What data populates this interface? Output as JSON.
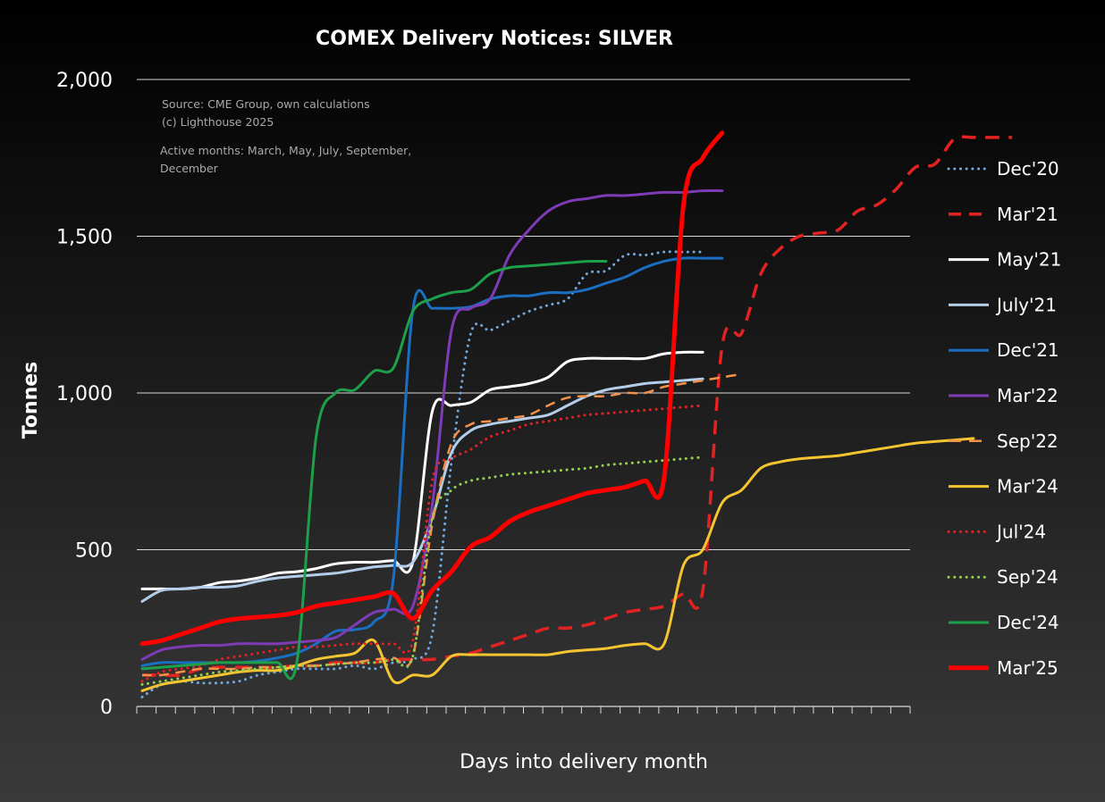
{
  "chart_data": {
    "type": "line",
    "title": "COMEX Delivery Notices: SILVER",
    "xlabel": "Days into delivery month",
    "ylabel": "Tonnes",
    "ylim": [
      0,
      2000
    ],
    "yticks": [
      0,
      500,
      1000,
      1500,
      2000
    ],
    "ytick_labels": [
      "0",
      "500",
      "1,000",
      "1,500",
      "2,000"
    ],
    "x_count": 40,
    "grid": true,
    "legend_position": "right",
    "notes": [
      "Source: CME Group, own calculations",
      "(c) Lighthouse 2025",
      "Active months: March, May, July, September,",
      "December"
    ],
    "series": [
      {
        "name": "Dec'20",
        "color": "#6fa8dc",
        "dash": "dot",
        "width": 3,
        "values": [
          30,
          70,
          80,
          75,
          75,
          80,
          100,
          110,
          120,
          120,
          120,
          130,
          120,
          140,
          150,
          230,
          780,
          1190,
          1200,
          1230,
          1260,
          1280,
          1300,
          1380,
          1390,
          1440,
          1440,
          1450,
          1450,
          1450
        ]
      },
      {
        "name": "Mar'21",
        "color": "#e32222",
        "dash": "dash",
        "width": 3.5,
        "values": [
          100,
          100,
          100,
          120,
          125,
          125,
          125,
          125,
          130,
          130,
          140,
          140,
          140,
          150,
          150,
          150,
          160,
          170,
          190,
          210,
          230,
          250,
          250,
          260,
          280,
          300,
          310,
          320,
          360,
          370,
          1150,
          1190,
          1380,
          1460,
          1500,
          1510,
          1520,
          1580,
          1600,
          1650,
          1720,
          1730,
          1810,
          1815,
          1815,
          1815
        ]
      },
      {
        "name": "May'21",
        "color": "#ffffff",
        "dash": "solid",
        "width": 3,
        "values": [
          375,
          375,
          375,
          380,
          395,
          400,
          410,
          425,
          430,
          440,
          455,
          460,
          460,
          465,
          460,
          940,
          960,
          970,
          1010,
          1020,
          1030,
          1050,
          1100,
          1110,
          1110,
          1110,
          1110,
          1125,
          1130,
          1130
        ]
      },
      {
        "name": "July'21",
        "color": "#b4cde9",
        "dash": "solid",
        "width": 3,
        "values": [
          335,
          370,
          375,
          380,
          380,
          385,
          400,
          410,
          415,
          420,
          425,
          435,
          445,
          450,
          460,
          600,
          810,
          880,
          900,
          910,
          920,
          930,
          960,
          990,
          1010,
          1020,
          1030,
          1035,
          1040,
          1045
        ]
      },
      {
        "name": "Dec'21",
        "color": "#1b6fc2",
        "dash": "solid",
        "width": 3,
        "values": [
          130,
          140,
          140,
          140,
          140,
          140,
          145,
          155,
          170,
          200,
          240,
          245,
          270,
          410,
          1265,
          1270,
          1270,
          1275,
          1300,
          1310,
          1310,
          1320,
          1320,
          1330,
          1350,
          1370,
          1400,
          1420,
          1430,
          1430,
          1430
        ]
      },
      {
        "name": "Mar'22",
        "color": "#7d3cb5",
        "dash": "solid",
        "width": 3,
        "values": [
          150,
          180,
          190,
          195,
          195,
          200,
          200,
          200,
          205,
          210,
          220,
          260,
          300,
          310,
          320,
          640,
          1200,
          1270,
          1300,
          1440,
          1520,
          1580,
          1610,
          1620,
          1630,
          1630,
          1635,
          1640,
          1640,
          1645,
          1645
        ]
      },
      {
        "name": "Sep'22",
        "color": "#f4914a",
        "dash": "dash",
        "width": 2.5,
        "values": [
          100,
          100,
          110,
          120,
          120,
          120,
          125,
          125,
          130,
          130,
          135,
          140,
          150,
          155,
          160,
          580,
          840,
          900,
          910,
          920,
          930,
          960,
          985,
          990,
          990,
          1000,
          1000,
          1020,
          1030,
          1040,
          1050,
          1060
        ]
      },
      {
        "name": "Mar'24",
        "color": "#f5c531",
        "dash": "solid",
        "width": 3,
        "values": [
          50,
          70,
          80,
          90,
          100,
          110,
          115,
          115,
          130,
          150,
          160,
          170,
          210,
          80,
          100,
          100,
          160,
          165,
          165,
          165,
          165,
          165,
          175,
          180,
          185,
          195,
          200,
          200,
          450,
          500,
          650,
          690,
          760,
          780,
          790,
          795,
          800,
          810,
          820,
          830,
          840,
          845,
          850,
          855
        ]
      },
      {
        "name": "Jul'24",
        "color": "#e32222",
        "dash": "dot",
        "width": 3,
        "values": [
          80,
          110,
          120,
          130,
          150,
          160,
          170,
          180,
          190,
          190,
          195,
          200,
          200,
          200,
          210,
          720,
          790,
          820,
          860,
          880,
          900,
          910,
          920,
          930,
          935,
          940,
          945,
          950,
          955,
          960
        ]
      },
      {
        "name": "Sep'24",
        "color": "#92d050",
        "dash": "dot",
        "width": 3,
        "values": [
          70,
          80,
          90,
          100,
          110,
          115,
          120,
          125,
          130,
          130,
          135,
          140,
          140,
          150,
          160,
          600,
          690,
          720,
          730,
          740,
          745,
          750,
          755,
          760,
          770,
          775,
          780,
          785,
          790,
          795
        ]
      },
      {
        "name": "Dec'24",
        "color": "#1da049",
        "dash": "solid",
        "width": 3,
        "values": [
          120,
          125,
          130,
          135,
          140,
          140,
          140,
          140,
          140,
          860,
          1000,
          1010,
          1070,
          1080,
          1260,
          1300,
          1320,
          1330,
          1380,
          1400,
          1405,
          1410,
          1415,
          1420,
          1420
        ]
      },
      {
        "name": "Mar'25",
        "color": "#ff0000",
        "dash": "solid",
        "width": 5,
        "values": [
          200,
          210,
          230,
          250,
          270,
          280,
          285,
          290,
          300,
          320,
          330,
          340,
          350,
          360,
          280,
          370,
          430,
          510,
          540,
          590,
          620,
          640,
          660,
          680,
          690,
          700,
          720,
          730,
          1600,
          1750,
          1830
        ]
      }
    ]
  }
}
